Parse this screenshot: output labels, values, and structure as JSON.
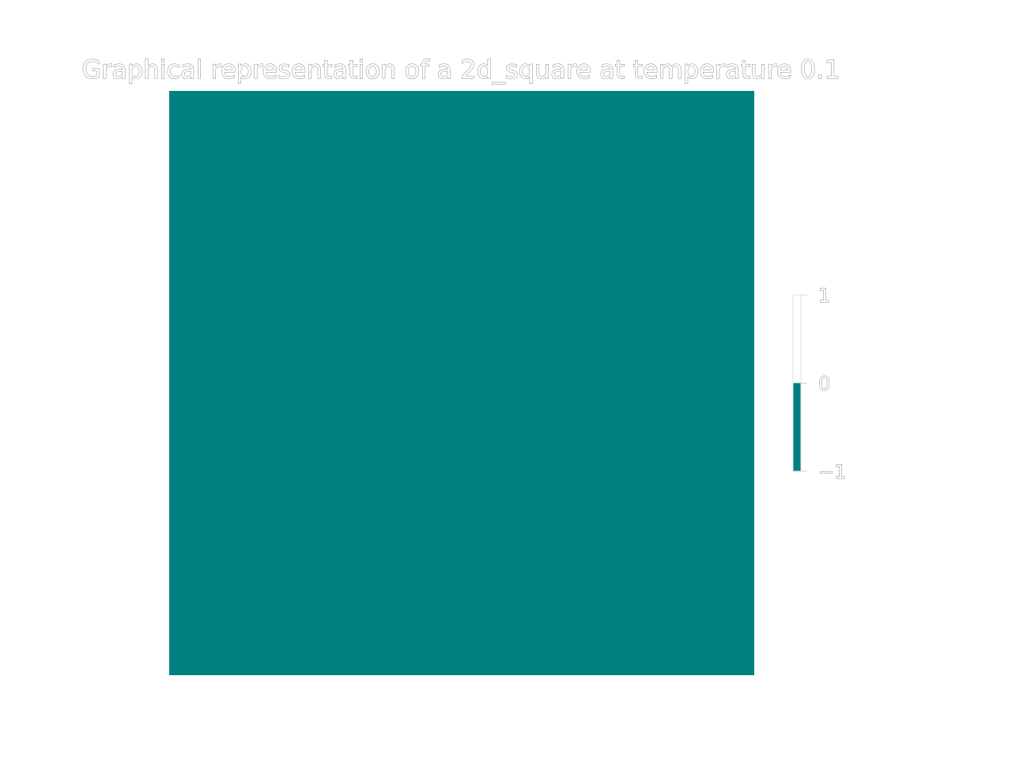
{
  "chart_data": {
    "type": "heatmap",
    "title": "Graphical representation of a 2d_square at temperature 0.1",
    "values": [
      [
        -1
      ]
    ],
    "xlabel": "",
    "ylabel": "",
    "colorbar": {
      "range": [
        -1,
        1
      ],
      "ticks": [
        "1",
        "0",
        "−1"
      ],
      "low_color": "#008080",
      "high_color": "#ffffff"
    },
    "grid": false
  },
  "colors": {
    "spin_down": "#008080",
    "spin_up": "#ffffff",
    "background": "#ffffff"
  }
}
